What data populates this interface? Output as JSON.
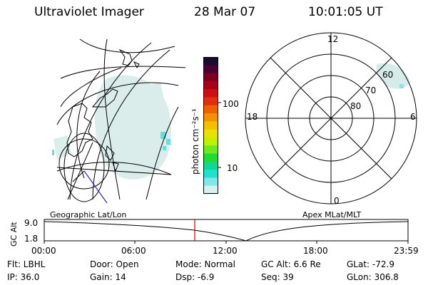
{
  "header": {
    "title": "Ultraviolet Imager",
    "date": "28 Mar 07",
    "time": "10:01:05 UT"
  },
  "colorbar": {
    "label": "photon cm⁻²s⁻¹",
    "ticks": [
      "100",
      "10"
    ],
    "colors": [
      "#1a0a2e",
      "#4b0033",
      "#7a0020",
      "#a8001a",
      "#cc1010",
      "#e03010",
      "#f06000",
      "#f59000",
      "#f2c000",
      "#e8e000",
      "#c0f000",
      "#70e820",
      "#20dc30",
      "#10d890",
      "#20e0d0",
      "#80e8e8",
      "#d8f0f0"
    ]
  },
  "left_panel": {
    "caption": "Geographic Lat/Lon"
  },
  "right_panel": {
    "caption": "Apex MLat/MLT",
    "mlt_labels": {
      "top": "12",
      "left": "18",
      "right": "6",
      "bottom": "0"
    },
    "mlat_labels": [
      "60",
      "70",
      "80"
    ]
  },
  "altitude_strip": {
    "axis_title": "GC Alt",
    "y_ticks": [
      "9.0",
      "1.8"
    ],
    "x_ticks": [
      "00:00",
      "06:00",
      "12:00",
      "18:00",
      "23:59"
    ],
    "marker_color": "#cc0000"
  },
  "info": {
    "flt": "Flt: LBHL",
    "ip": "IP: 36.0",
    "door": "Door: Open",
    "gain": "Gain: 14",
    "mode": "Mode: Normal",
    "dsp": "Dsp:    -6.9",
    "gc_alt": "GC Alt: 6.6 Re",
    "seq": "Seq: 39",
    "glat": "GLat: -72.9",
    "glon": "GLon: 306.8"
  }
}
